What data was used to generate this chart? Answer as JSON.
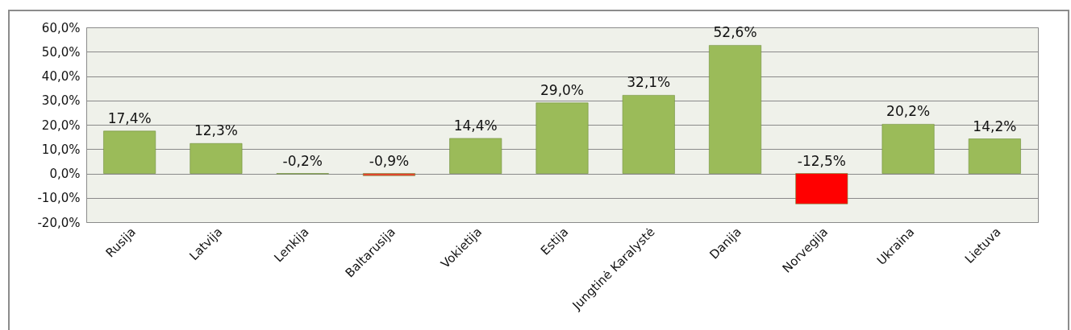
{
  "chart_data": {
    "type": "bar",
    "categories": [
      "Rusija",
      "Latvija",
      "Lenkija",
      "Baltarusija",
      "Vokietija",
      "Estija",
      "Jungtinė Karalystė",
      "Danija",
      "Norvegija",
      "Ukraina",
      "Lietuva"
    ],
    "values": [
      17.4,
      12.3,
      -0.2,
      -0.9,
      14.4,
      29.0,
      32.1,
      52.6,
      -12.5,
      20.2,
      14.2
    ],
    "colors": [
      "#9bbb59",
      "#9bbb59",
      "#9bbb59",
      "#e8412c",
      "#9bbb59",
      "#9bbb59",
      "#9bbb59",
      "#9bbb59",
      "#ff0000",
      "#9bbb59",
      "#9bbb59"
    ],
    "value_labels": [
      "17,4%",
      "12,3%",
      "-0,2%",
      "-0,9%",
      "14,4%",
      "29,0%",
      "32,1%",
      "52,6%",
      "-12,5%",
      "20,2%",
      "14,2%"
    ],
    "ylim": [
      -20,
      60
    ],
    "yticks": [
      {
        "value": -20,
        "label": "-20,0%"
      },
      {
        "value": -10,
        "label": "-10,0%"
      },
      {
        "value": 0,
        "label": "0,0%"
      },
      {
        "value": 10,
        "label": "10,0%"
      },
      {
        "value": 20,
        "label": "20,0%"
      },
      {
        "value": 30,
        "label": "30,0%"
      },
      {
        "value": 40,
        "label": "40,0%"
      },
      {
        "value": 50,
        "label": "50,0%"
      },
      {
        "value": 60,
        "label": "60,0%"
      }
    ],
    "grid": "y"
  }
}
